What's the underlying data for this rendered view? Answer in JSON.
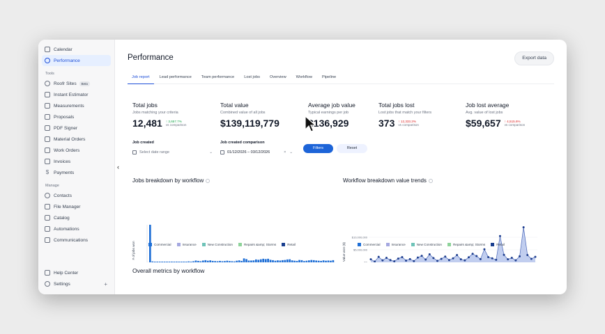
{
  "sidebar": {
    "top_items": [
      {
        "label": "Calendar",
        "icon": "calendar-icon"
      },
      {
        "label": "Performance",
        "icon": "performance-icon",
        "active": true
      }
    ],
    "tools_header": "Tools",
    "tools": [
      {
        "label": "Roofr Sites",
        "badge": "Beta"
      },
      {
        "label": "Instant Estimator"
      },
      {
        "label": "Measurements"
      },
      {
        "label": "Proposals"
      },
      {
        "label": "PDF Signer"
      },
      {
        "label": "Material Orders"
      },
      {
        "label": "Work Orders"
      },
      {
        "label": "Invoices"
      },
      {
        "label": "Payments"
      }
    ],
    "manage_header": "Manage",
    "manage": [
      {
        "label": "Contacts"
      },
      {
        "label": "File Manager"
      },
      {
        "label": "Catalog"
      },
      {
        "label": "Automations"
      },
      {
        "label": "Communications"
      }
    ],
    "bottom": [
      {
        "label": "Help Center"
      },
      {
        "label": "Settings"
      }
    ],
    "payments_symbol": "$",
    "collapse_glyph": "‹",
    "settings_plus": "+"
  },
  "header": {
    "title": "Performance",
    "export_label": "Export data"
  },
  "tabs": [
    {
      "label": "Job report",
      "active": true
    },
    {
      "label": "Lead performance"
    },
    {
      "label": "Team performance"
    },
    {
      "label": "Lost jobs"
    },
    {
      "label": "Overview"
    },
    {
      "label": "Workflow"
    },
    {
      "label": "Pipeline"
    }
  ],
  "kpis": [
    {
      "label": "Total jobs",
      "sub": "Jobs matching your criteria",
      "value": "12,481",
      "delta": "↑ 3,657.7%",
      "delta_dir": "up",
      "cmp": "vs comparison"
    },
    {
      "label": "Total value",
      "sub": "Combined value of all jobs",
      "value": "$139,119,779",
      "delta": "",
      "delta_dir": "",
      "cmp": ""
    },
    {
      "label": "Average job value",
      "sub": "Typical earnings per job",
      "value": "$136,929",
      "delta": "",
      "delta_dir": "",
      "cmp": ""
    },
    {
      "label": "Total jobs lost",
      "sub": "Lost jobs that match your filters",
      "value": "373",
      "delta": "↑ 12,333.3%",
      "delta_dir": "down",
      "cmp": "vs comparison"
    },
    {
      "label": "Job lost average",
      "sub": "Avg. value of lost jobs",
      "value": "$59,657",
      "delta": "↑ 4,515.6%",
      "delta_dir": "down",
      "cmp": "vs comparison"
    }
  ],
  "filters": {
    "created_label": "Job created",
    "created_placeholder": "Select date range",
    "comparison_label": "Job created comparison",
    "comparison_value": "01/12/2026 – 03/12/2026",
    "clear_glyph": "×",
    "chevron_glyph": "⌄",
    "filters_button": "Filters",
    "reset_button": "Reset"
  },
  "charts": {
    "left_title": "Jobs breakdown by workflow",
    "right_title": "Workflow breakdown value trends",
    "overall_title": "Overall metrics by workflow"
  },
  "colors": {
    "accent": "#1d64d8",
    "commercial": "#1f6fd6",
    "insurance": "#a5a8e0",
    "new_construction": "#6fc3b8",
    "repairs": "#8ed39a",
    "retail": "#1a3f8f"
  },
  "chart_data": [
    {
      "type": "bar",
      "title": "Jobs breakdown by workflow",
      "ylabel": "# of jobs won",
      "xlabel": "",
      "x_ticks": [
        "2020-08",
        "2021-02",
        "2021-08",
        "2022-02",
        "2022-08",
        "2023-02"
      ],
      "ylim": [
        0,
        210
      ],
      "legend": [
        "Commercial",
        "Insurance",
        "New Construction",
        "Repairs &amp; Storms",
        "Retail"
      ],
      "values": [
        210,
        5,
        2,
        2,
        2,
        3,
        2,
        3,
        3,
        4,
        2,
        4,
        3,
        3,
        4,
        3,
        5,
        4,
        6,
        10,
        8,
        6,
        10,
        12,
        9,
        11,
        8,
        7,
        6,
        8,
        6,
        7,
        9,
        7,
        6,
        5,
        9,
        11,
        8,
        22,
        18,
        10,
        10,
        11,
        16,
        14,
        17,
        20,
        18,
        20,
        14,
        12,
        9,
        11,
        10,
        12,
        13,
        16,
        17,
        11,
        9,
        8,
        13,
        12,
        7,
        9,
        11,
        13,
        12,
        10,
        9,
        8,
        11,
        9,
        10,
        9,
        12
      ]
    },
    {
      "type": "area",
      "title": "Workflow breakdown value trends",
      "ylabel": "Value won ($)",
      "y_ticks": [
        "$0",
        "$5,000,000",
        "$10,000,000"
      ],
      "x_ticks": [
        "2020-04",
        "2020-08",
        "2020-12",
        "2021-04",
        "2021-08"
      ],
      "ylim": [
        0,
        15000000
      ],
      "legend": [
        "Commercial",
        "Insurance",
        "New Construction",
        "Repairs &amp; Storms",
        "Retail"
      ],
      "values": [
        1200000,
        300000,
        2200000,
        800000,
        1800000,
        900000,
        400000,
        1500000,
        2100000,
        700000,
        1300000,
        500000,
        1900000,
        2600000,
        1100000,
        3200000,
        1700000,
        600000,
        1400000,
        2300000,
        900000,
        1600000,
        2900000,
        1200000,
        800000,
        2000000,
        3400000,
        2500000,
        1300000,
        5200000,
        2100000,
        1600000,
        1000000,
        10500000,
        3000000,
        1200000,
        1800000,
        800000,
        2400000,
        14000000,
        2900000,
        1400000,
        2200000
      ]
    }
  ]
}
